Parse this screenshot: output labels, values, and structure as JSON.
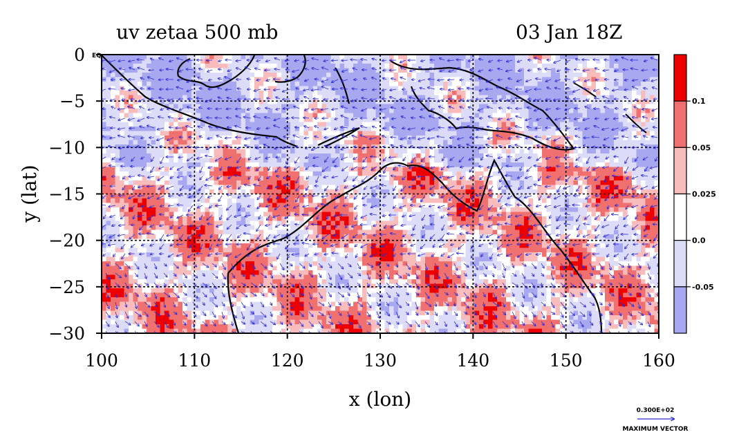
{
  "header": {
    "title_left": "uv zetaa 500 mb",
    "title_right": "03 Jan 18Z"
  },
  "colors": {
    "strong_positive": "#ee0000",
    "positive": "#f07070",
    "weak_positive": "#f8bcbc",
    "zero_band": "#ffffff",
    "weak_negative": "#dcdcf8",
    "negative": "#a8a8f0",
    "vectors": "#2a2ad8",
    "coastline": "#000000"
  },
  "chart_data": {
    "type": "heatmap",
    "title": "uv zetaa 500 mb",
    "subtitle": "03 Jan 18Z",
    "xlabel": "x (lon)",
    "ylabel": "y (lat)",
    "xlim": [
      100,
      160
    ],
    "ylim": [
      -30,
      0
    ],
    "x_ticks": [
      "100",
      "110",
      "120",
      "130",
      "140",
      "150",
      "160"
    ],
    "y_ticks": [
      "0",
      "−5",
      "−10",
      "−15",
      "−20",
      "−25",
      "−30"
    ],
    "y_tick_suffix_at_zero": "EQ",
    "grid": true,
    "grid_lon": [
      110,
      120,
      130,
      140,
      150
    ],
    "grid_lat": [
      -5,
      -10,
      -15,
      -20,
      -25
    ],
    "colorbar": {
      "labels": [
        "0.1",
        "0.05",
        "0.025",
        "0.0",
        "-0.05"
      ],
      "levels": [
        0.1,
        0.05,
        0.025,
        0.0,
        -0.05
      ],
      "bands_top_to_bottom": [
        "strong_positive",
        "positive",
        "weak_positive",
        "zero_band",
        "weak_negative",
        "negative"
      ]
    },
    "vector_field": {
      "name": "uv",
      "max_vector_value": "0.300E+02",
      "max_vector_label": "MAXIMUM VECTOR"
    }
  }
}
